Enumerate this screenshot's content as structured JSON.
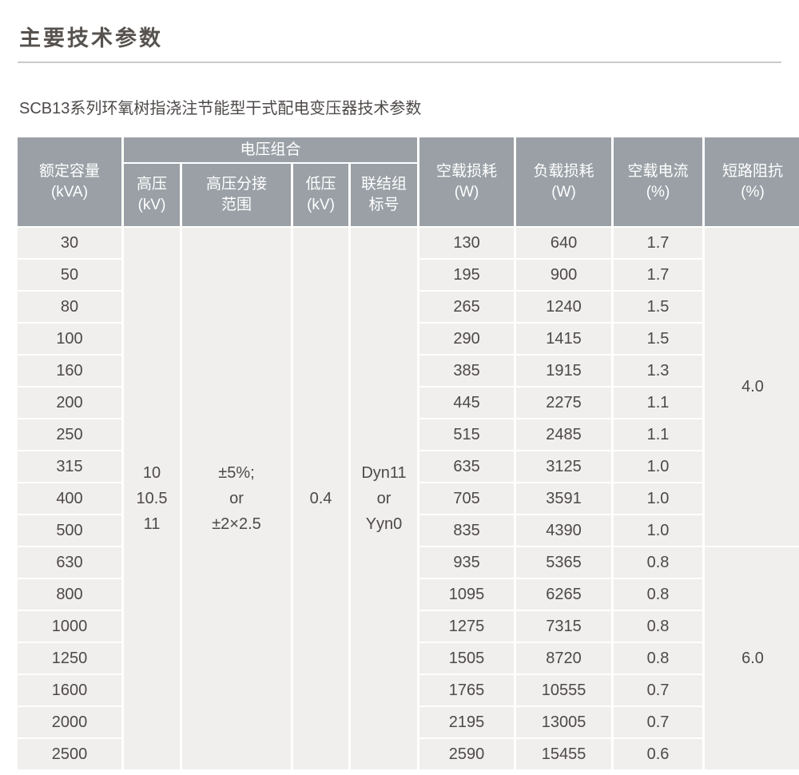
{
  "page": {
    "title": "主要技术参数",
    "subtitle": "SCB13系列环氧树指浇注节能型干式配电变压器技术参数"
  },
  "colors": {
    "header_bg": "#9aa0a6",
    "cell_bg": "#f0efed",
    "header_text": "#ffffff",
    "body_text": "#4d4948",
    "title_text": "#56524f",
    "divider": "#c7cbce",
    "page_bg": "#ffffff"
  },
  "table": {
    "headers": {
      "capacity": "额定容量\n(kVA)",
      "voltage_combo": "电压组合",
      "hv": "高压\n(kV)",
      "tap_range": "高压分接\n范围",
      "lv": "低压\n(kV)",
      "vector_group": "联结组\n标号",
      "no_load_loss": "空载损耗\n(W)",
      "load_loss": "负载损耗\n(W)",
      "no_load_current": "空载电流\n(%)",
      "impedance": "短路阻抗\n(%)"
    },
    "merged": {
      "hv": "10\n10.5\n11",
      "tap_range": "±5%;\nor\n±2×2.5",
      "lv": "0.4",
      "vector_group": "Dyn11\nor\nYyn0"
    },
    "impedance_groups": [
      {
        "value": "4.0",
        "row_count": 10
      },
      {
        "value": "6.0",
        "row_count": 7
      }
    ],
    "rows": [
      {
        "capacity": "30",
        "no_load_loss": "130",
        "load_loss": "640",
        "no_load_current": "1.7"
      },
      {
        "capacity": "50",
        "no_load_loss": "195",
        "load_loss": "900",
        "no_load_current": "1.7"
      },
      {
        "capacity": "80",
        "no_load_loss": "265",
        "load_loss": "1240",
        "no_load_current": "1.5"
      },
      {
        "capacity": "100",
        "no_load_loss": "290",
        "load_loss": "1415",
        "no_load_current": "1.5"
      },
      {
        "capacity": "160",
        "no_load_loss": "385",
        "load_loss": "1915",
        "no_load_current": "1.3"
      },
      {
        "capacity": "200",
        "no_load_loss": "445",
        "load_loss": "2275",
        "no_load_current": "1.1"
      },
      {
        "capacity": "250",
        "no_load_loss": "515",
        "load_loss": "2485",
        "no_load_current": "1.1"
      },
      {
        "capacity": "315",
        "no_load_loss": "635",
        "load_loss": "3125",
        "no_load_current": "1.0"
      },
      {
        "capacity": "400",
        "no_load_loss": "705",
        "load_loss": "3591",
        "no_load_current": "1.0"
      },
      {
        "capacity": "500",
        "no_load_loss": "835",
        "load_loss": "4390",
        "no_load_current": "1.0"
      },
      {
        "capacity": "630",
        "no_load_loss": "935",
        "load_loss": "5365",
        "no_load_current": "0.8"
      },
      {
        "capacity": "800",
        "no_load_loss": "1095",
        "load_loss": "6265",
        "no_load_current": "0.8"
      },
      {
        "capacity": "1000",
        "no_load_loss": "1275",
        "load_loss": "7315",
        "no_load_current": "0.8"
      },
      {
        "capacity": "1250",
        "no_load_loss": "1505",
        "load_loss": "8720",
        "no_load_current": "0.8"
      },
      {
        "capacity": "1600",
        "no_load_loss": "1765",
        "load_loss": "10555",
        "no_load_current": "0.7"
      },
      {
        "capacity": "2000",
        "no_load_loss": "2195",
        "load_loss": "13005",
        "no_load_current": "0.7"
      },
      {
        "capacity": "2500",
        "no_load_loss": "2590",
        "load_loss": "15455",
        "no_load_current": "0.6"
      }
    ]
  }
}
